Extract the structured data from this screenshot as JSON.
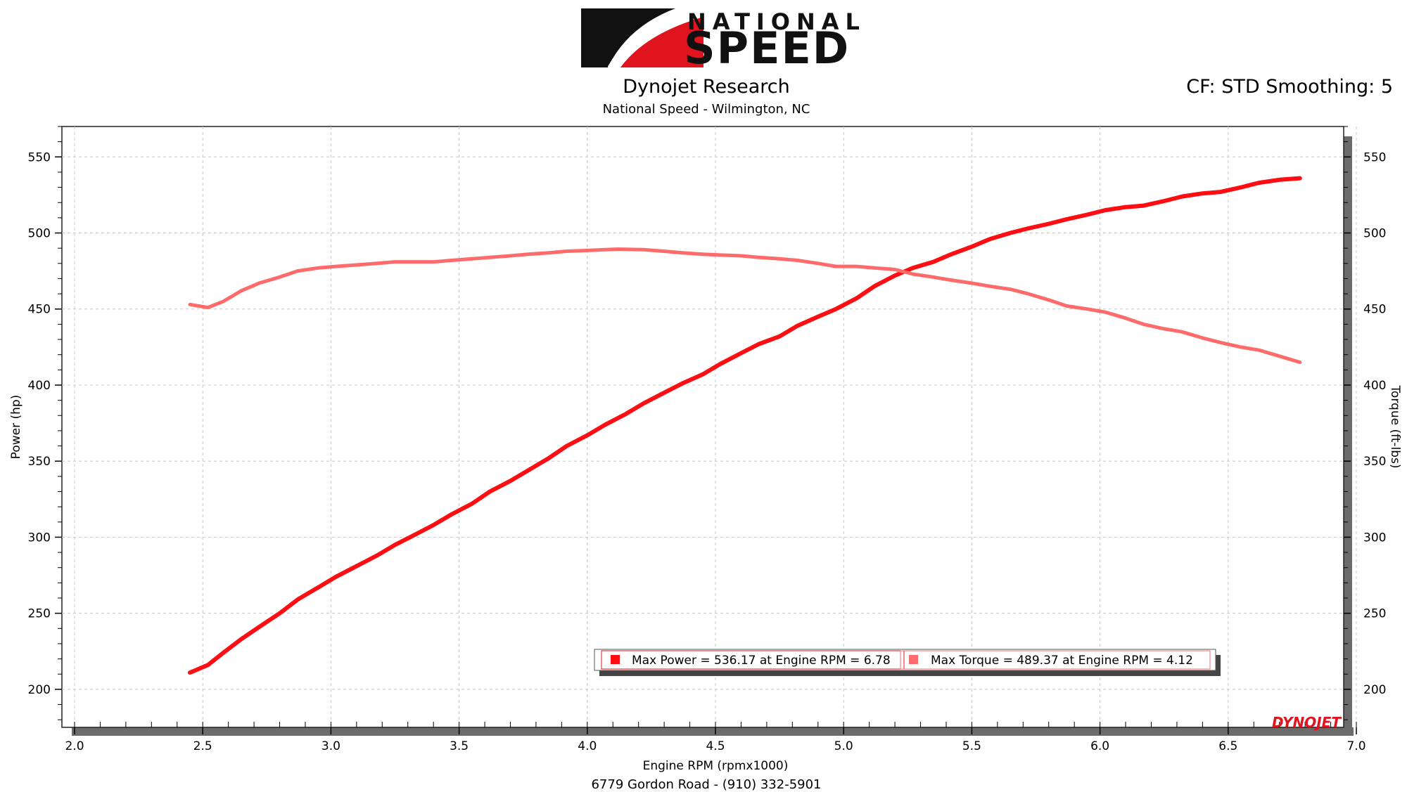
{
  "header": {
    "logo_top": "NATIONAL",
    "logo_bottom": "SPEED",
    "title": "Dynojet Research",
    "subtitle": "National Speed - Wilmington, NC",
    "cf_label": "CF: STD Smoothing: 5"
  },
  "footer": {
    "address": "6779 Gordon Road - (910) 332-5901"
  },
  "brand": {
    "mark": "DYNOJET"
  },
  "colors": {
    "power": "#ff0d12",
    "torque": "#ff6b6b",
    "grid": "#c8c8c8"
  },
  "chart_data": {
    "type": "line",
    "xlabel": "Engine RPM (rpmx1000)",
    "ylabel_left": "Power (hp)",
    "ylabel_right": "Torque (ft-lbs)",
    "xlim": [
      2.0,
      7.0
    ],
    "ylim": [
      175,
      570
    ],
    "x_ticks": [
      "2.0",
      "2.5",
      "3.0",
      "3.5",
      "4.0",
      "4.5",
      "5.0",
      "5.5",
      "6.0",
      "6.5",
      "7.0"
    ],
    "y_ticks": [
      "200",
      "250",
      "300",
      "350",
      "400",
      "450",
      "500",
      "550"
    ],
    "grid": true,
    "legend_position": "bottom-center",
    "legend": [
      "Max Power = 536.17 at Engine RPM = 6.78",
      "Max Torque = 489.37 at Engine RPM = 4.12"
    ],
    "series": [
      {
        "id": "power",
        "axis": "left",
        "x": [
          2.45,
          2.52,
          2.58,
          2.65,
          2.72,
          2.8,
          2.87,
          2.95,
          3.02,
          3.1,
          3.18,
          3.25,
          3.32,
          3.4,
          3.47,
          3.55,
          3.62,
          3.7,
          3.77,
          3.85,
          3.92,
          4.0,
          4.07,
          4.15,
          4.22,
          4.3,
          4.37,
          4.45,
          4.52,
          4.6,
          4.67,
          4.75,
          4.82,
          4.9,
          4.97,
          5.05,
          5.12,
          5.2,
          5.27,
          5.35,
          5.42,
          5.5,
          5.57,
          5.65,
          5.72,
          5.8,
          5.87,
          5.95,
          6.02,
          6.1,
          6.17,
          6.25,
          6.32,
          6.4,
          6.47,
          6.55,
          6.62,
          6.7,
          6.78
        ],
        "y": [
          211,
          216,
          224,
          233,
          241,
          250,
          259,
          267,
          274,
          281,
          288,
          295,
          301,
          308,
          315,
          322,
          330,
          337,
          344,
          352,
          360,
          367,
          374,
          381,
          388,
          395,
          401,
          407,
          414,
          421,
          427,
          432,
          439,
          445,
          450,
          457,
          465,
          472,
          477,
          481,
          486,
          491,
          496,
          500,
          503,
          506,
          509,
          512,
          515,
          517,
          518,
          521,
          524,
          526,
          527,
          530,
          533,
          535,
          536
        ]
      },
      {
        "id": "torque",
        "axis": "right",
        "x": [
          2.45,
          2.52,
          2.58,
          2.65,
          2.72,
          2.8,
          2.87,
          2.95,
          3.02,
          3.1,
          3.18,
          3.25,
          3.32,
          3.4,
          3.47,
          3.55,
          3.62,
          3.7,
          3.77,
          3.85,
          3.92,
          4.0,
          4.07,
          4.12,
          4.22,
          4.3,
          4.37,
          4.45,
          4.52,
          4.6,
          4.67,
          4.75,
          4.82,
          4.9,
          4.97,
          5.05,
          5.12,
          5.2,
          5.27,
          5.35,
          5.42,
          5.5,
          5.57,
          5.65,
          5.72,
          5.8,
          5.87,
          5.95,
          6.02,
          6.1,
          6.17,
          6.25,
          6.32,
          6.4,
          6.47,
          6.55,
          6.62,
          6.7,
          6.78
        ],
        "y": [
          453,
          451,
          455,
          462,
          467,
          471,
          475,
          477,
          478,
          479,
          480,
          481,
          481,
          481,
          482,
          483,
          484,
          485,
          486,
          487,
          488,
          488.5,
          489,
          489.4,
          489,
          488,
          487,
          486,
          485.5,
          485,
          484,
          483,
          482,
          480,
          478,
          478,
          477,
          476,
          473,
          471,
          469,
          467,
          465,
          463,
          460,
          456,
          452,
          450,
          448,
          444,
          440,
          437,
          435,
          431,
          428,
          425,
          423,
          419,
          415
        ]
      }
    ]
  }
}
